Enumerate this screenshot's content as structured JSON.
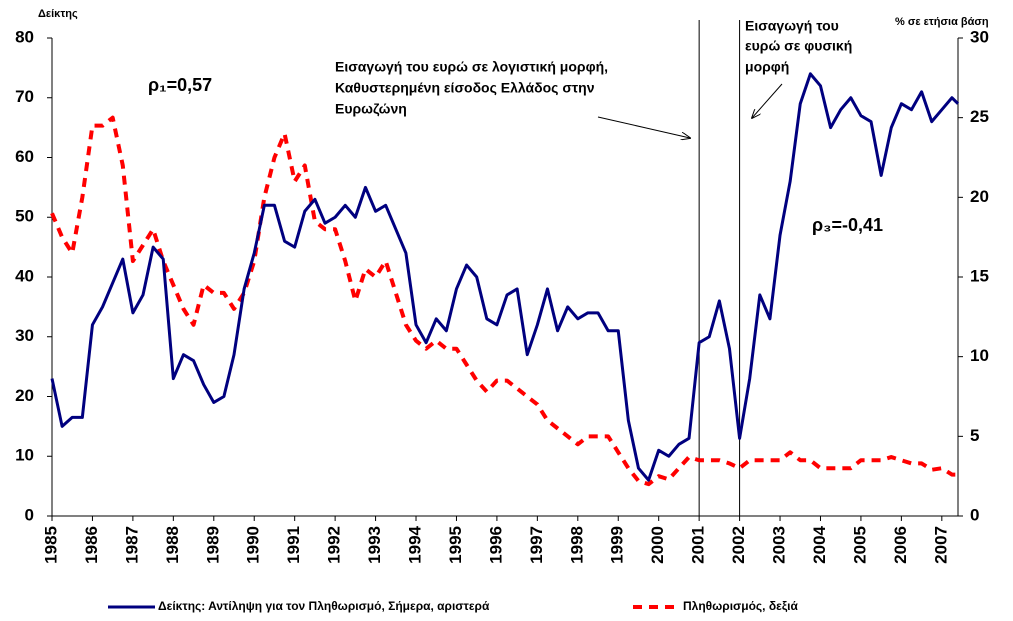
{
  "chart_data": {
    "type": "line",
    "y_label": "Δείκτης",
    "y2_label": "% σε ετήσια βάση",
    "x": [
      1985,
      1985.25,
      1985.5,
      1985.75,
      1986,
      1986.25,
      1986.5,
      1986.75,
      1987,
      1987.25,
      1987.5,
      1987.75,
      1988,
      1988.25,
      1988.5,
      1988.75,
      1989,
      1989.25,
      1989.5,
      1989.75,
      1990,
      1990.25,
      1990.5,
      1990.75,
      1991,
      1991.25,
      1991.5,
      1991.75,
      1992,
      1992.25,
      1992.5,
      1992.75,
      1993,
      1993.25,
      1993.5,
      1993.75,
      1994,
      1994.25,
      1994.5,
      1994.75,
      1995,
      1995.25,
      1995.5,
      1995.75,
      1996,
      1996.25,
      1996.5,
      1996.75,
      1997,
      1997.25,
      1997.5,
      1997.75,
      1998,
      1998.25,
      1998.5,
      1998.75,
      1999,
      1999.25,
      1999.5,
      1999.75,
      2000,
      2000.25,
      2000.5,
      2000.75,
      2001,
      2001.25,
      2001.5,
      2001.75,
      2002,
      2002.25,
      2002.5,
      2002.75,
      2003,
      2003.25,
      2003.5,
      2003.75,
      2004,
      2004.25,
      2004.5,
      2004.75,
      2005,
      2005.25,
      2005.5,
      2005.75,
      2006,
      2006.25,
      2006.5,
      2006.75,
      2007,
      2007.25,
      2007.4
    ],
    "series": [
      {
        "name": "Δείκτης: Αντίληψη για τον Πληθωρισμό, Σήμερα, αριστερά",
        "color": "#00007f",
        "axis": "y",
        "dashed": false,
        "values": [
          23,
          15,
          16.5,
          16.5,
          32,
          35,
          39,
          43,
          34,
          37,
          45,
          43,
          23,
          27,
          26,
          22,
          19,
          20,
          27,
          38,
          44,
          52,
          52,
          46,
          45,
          51,
          53,
          49,
          50,
          52,
          50,
          55,
          51,
          52,
          48,
          44,
          32,
          29,
          33,
          31,
          38,
          42,
          40,
          33,
          32,
          37,
          38,
          27,
          32,
          38,
          31,
          35,
          33,
          34,
          34,
          31,
          31,
          16,
          8,
          6,
          11,
          10,
          12,
          13,
          29,
          30,
          36,
          28,
          13,
          23,
          37,
          33,
          47,
          56,
          69,
          74,
          72,
          65,
          68,
          70,
          67,
          66,
          57,
          65,
          69,
          68,
          71,
          66,
          68,
          70,
          69
        ]
      },
      {
        "name": "Πληθωρισμός, δεξιά",
        "color": "#ff0000",
        "axis": "y2",
        "dashed": true,
        "values": [
          19,
          17.5,
          16.5,
          20,
          24.5,
          24.5,
          25,
          22,
          16,
          17,
          18,
          16,
          14.5,
          13,
          12,
          14.5,
          14,
          14,
          13,
          14,
          16,
          20,
          22.5,
          24,
          21,
          22,
          18.5,
          18,
          18,
          16,
          13.5,
          15.5,
          15,
          16,
          14,
          12,
          11,
          10.5,
          11,
          10.5,
          10.5,
          9.5,
          8.5,
          7.8,
          8.5,
          8.5,
          8,
          7.5,
          7,
          6,
          5.5,
          5,
          4.5,
          5,
          5,
          5,
          4,
          3,
          2.2,
          2,
          2.5,
          2.3,
          3,
          3.7,
          3.5,
          3.5,
          3.5,
          3.3,
          3,
          3.5,
          3.5,
          3.5,
          3.5,
          4,
          3.5,
          3.5,
          3,
          3,
          3,
          3,
          3.5,
          3.5,
          3.5,
          3.7,
          3.5,
          3.3,
          3.3,
          2.9,
          3,
          2.6,
          2.6
        ]
      }
    ],
    "xlim": [
      1985,
      2007.4
    ],
    "xticks": [
      1985,
      1986,
      1987,
      1988,
      1989,
      1990,
      1991,
      1992,
      1993,
      1994,
      1995,
      1996,
      1997,
      1998,
      1999,
      2000,
      2001,
      2002,
      2003,
      2004,
      2005,
      2006,
      2007
    ],
    "ylim": [
      0,
      80
    ],
    "yticks": [
      0,
      10,
      20,
      30,
      40,
      50,
      60,
      70,
      80
    ],
    "y2lim": [
      0,
      30
    ],
    "y2ticks": [
      0,
      5,
      10,
      15,
      20,
      25,
      30
    ],
    "vlines": [
      2001,
      2002
    ],
    "annotations": {
      "rho1": "ρ₁=0,57",
      "rho3": "ρ₃=-0,41",
      "euro_accounting": [
        "Εισαγωγή του ευρώ σε λογιστική μορφή,",
        "Καθυστερημένη είσοδος Ελλάδος στην",
        "Ευρωζώνη"
      ],
      "euro_physical": [
        "Εισαγωγή του",
        "ευρώ σε φυσική",
        "μορφή"
      ]
    }
  }
}
